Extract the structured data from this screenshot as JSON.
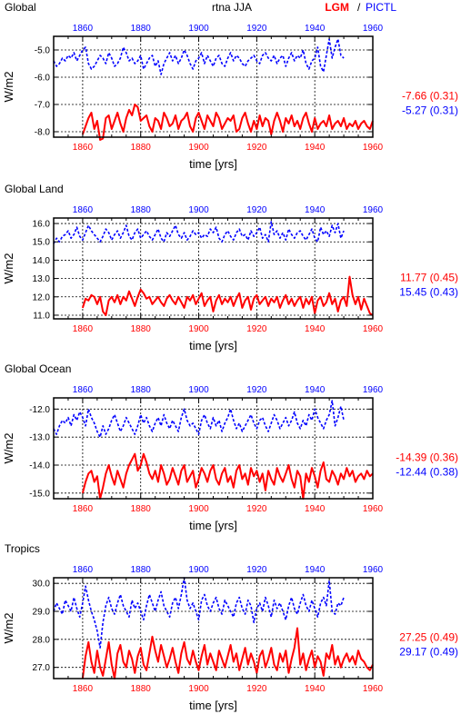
{
  "header": {
    "variable": "rtna JJA",
    "legend_red": "LGM",
    "legend_sep": "/",
    "legend_blue": "PICTL"
  },
  "colors": {
    "lgm": "#ff0000",
    "pictl": "#0000ff",
    "axis": "#000000",
    "grid": "#000000"
  },
  "chart_data": [
    {
      "type": "line",
      "title": "Global",
      "xlabel": "time [yrs]",
      "ylabel": "W/m2",
      "xlim": [
        1850,
        1960
      ],
      "ylim": [
        -8.2,
        -4.5
      ],
      "yticks": [
        "-5.0",
        "-6.0",
        "-7.0",
        "-8.0"
      ],
      "ytick_values": [
        -5.0,
        -6.0,
        -7.0,
        -8.0
      ],
      "xticks_top": [
        "1860",
        "1880",
        "1900",
        "1920",
        "1940",
        "1960"
      ],
      "xticks_bottom": [
        "1860",
        "1880",
        "1900",
        "1920",
        "1940",
        "1960"
      ],
      "grid": true,
      "series": [
        {
          "name": "LGM",
          "stat": "-7.66 (0.31)",
          "x_start": 1860,
          "values": [
            -8.1,
            -7.8,
            -7.5,
            -7.3,
            -7.9,
            -7.6,
            -8.3,
            -8.25,
            -7.5,
            -7.4,
            -7.9,
            -7.6,
            -7.3,
            -7.7,
            -8.0,
            -7.5,
            -7.2,
            -7.4,
            -7.0,
            -7.1,
            -7.6,
            -7.5,
            -7.4,
            -7.8,
            -8.0,
            -7.5,
            -7.6,
            -7.9,
            -7.3,
            -7.5,
            -7.8,
            -7.7,
            -7.4,
            -7.9,
            -7.6,
            -7.5,
            -7.3,
            -7.8,
            -8.0,
            -7.5,
            -7.3,
            -7.6,
            -7.9,
            -7.4,
            -7.6,
            -7.8,
            -7.3,
            -7.5,
            -7.9,
            -7.7,
            -7.5,
            -7.6,
            -7.4,
            -8.0,
            -7.9,
            -7.5,
            -7.3,
            -7.7,
            -8.0,
            -7.6,
            -7.9,
            -7.4,
            -7.8,
            -7.5,
            -7.6,
            -8.1,
            -7.6,
            -7.3,
            -7.6,
            -8.0,
            -7.5,
            -7.7,
            -7.4,
            -7.8,
            -7.6,
            -7.9,
            -7.5,
            -7.3,
            -7.7,
            -8.0,
            -7.5,
            -7.9,
            -7.7,
            -7.6,
            -7.8,
            -7.4,
            -7.9,
            -7.7,
            -7.6,
            -7.8,
            -7.5,
            -7.9,
            -7.7,
            -7.8,
            -7.6,
            -7.9,
            -7.7,
            -7.6,
            -7.8,
            -7.9,
            -7.6
          ]
        },
        {
          "name": "PICTL",
          "stat": "-5.27 (0.31)",
          "x_start": 1850,
          "values": [
            -5.4,
            -5.6,
            -5.5,
            -5.3,
            -5.4,
            -5.2,
            -5.3,
            -5.1,
            -5.4,
            -5.2,
            -5.0,
            -4.9,
            -5.5,
            -5.7,
            -5.6,
            -5.4,
            -5.2,
            -5.3,
            -5.5,
            -5.1,
            -5.3,
            -5.6,
            -5.5,
            -5.3,
            -4.9,
            -5.1,
            -5.4,
            -5.3,
            -5.5,
            -5.4,
            -5.2,
            -5.7,
            -5.5,
            -5.3,
            -5.2,
            -5.6,
            -5.4,
            -5.9,
            -5.5,
            -5.3,
            -5.1,
            -5.4,
            -5.2,
            -5.5,
            -5.3,
            -5.0,
            -5.2,
            -5.5,
            -5.7,
            -5.4,
            -5.3,
            -5.1,
            -5.5,
            -5.2,
            -5.4,
            -5.6,
            -5.3,
            -5.2,
            -5.5,
            -5.6,
            -5.3,
            -5.1,
            -5.4,
            -5.2,
            -5.3,
            -5.5,
            -5.6,
            -5.4,
            -5.3,
            -5.2,
            -5.4,
            -5.5,
            -5.2,
            -5.1,
            -5.3,
            -5.4,
            -5.2,
            -5.5,
            -5.3,
            -5.2,
            -5.6,
            -5.3,
            -5.1,
            -5.4,
            -5.2,
            -5.3,
            -5.0,
            -5.5,
            -5.7,
            -5.4,
            -5.3,
            -4.9,
            -5.6,
            -5.8,
            -5.2,
            -4.6,
            -5.3,
            -4.9,
            -4.6,
            -5.2,
            -5.3
          ]
        }
      ]
    },
    {
      "type": "line",
      "title": "Global Land",
      "xlabel": "time [yrs]",
      "ylabel": "W/m2",
      "xlim": [
        1850,
        1960
      ],
      "ylim": [
        10.8,
        16.3
      ],
      "yticks": [
        "16.0",
        "15.0",
        "14.0",
        "13.0",
        "12.0",
        "11.0"
      ],
      "ytick_values": [
        16.0,
        15.0,
        14.0,
        13.0,
        12.0,
        11.0
      ],
      "xticks_top": [
        "1860",
        "1880",
        "1900",
        "1920",
        "1940",
        "1960"
      ],
      "xticks_bottom": [
        "1860",
        "1880",
        "1900",
        "1920",
        "1940",
        "1960"
      ],
      "grid": true,
      "series": [
        {
          "name": "LGM",
          "stat": "11.77 (0.45)",
          "x_start": 1860,
          "values": [
            11.4,
            11.9,
            11.8,
            12.1,
            12.0,
            11.6,
            12.0,
            11.2,
            11.0,
            11.8,
            12.0,
            11.7,
            12.1,
            11.6,
            12.0,
            11.8,
            12.3,
            11.9,
            11.5,
            12.0,
            12.4,
            12.2,
            11.9,
            12.0,
            11.6,
            11.8,
            12.0,
            11.7,
            11.5,
            11.9,
            12.1,
            11.8,
            11.6,
            12.0,
            11.7,
            11.4,
            12.0,
            11.8,
            12.1,
            11.6,
            11.9,
            12.2,
            11.5,
            11.8,
            12.0,
            11.2,
            11.8,
            12.1,
            11.6,
            11.9,
            11.7,
            12.0,
            11.5,
            11.9,
            12.2,
            11.4,
            11.8,
            12.0,
            11.3,
            11.9,
            12.1,
            11.6,
            11.8,
            12.0,
            11.5,
            11.9,
            11.7,
            12.0,
            11.4,
            11.8,
            12.1,
            11.6,
            11.9,
            11.5,
            11.8,
            12.0,
            11.4,
            11.9,
            11.6,
            12.0,
            11.1,
            11.8,
            12.0,
            11.5,
            11.7,
            12.2,
            11.6,
            11.9,
            11.2,
            11.8,
            12.0,
            11.5,
            13.1,
            12.1,
            11.6,
            12.0,
            11.3,
            11.9,
            11.5,
            11.1,
            11.0
          ]
        },
        {
          "name": "PICTL",
          "stat": "15.45 (0.43)",
          "x_start": 1850,
          "values": [
            14.9,
            15.2,
            15.0,
            15.3,
            15.4,
            15.6,
            15.2,
            15.4,
            15.8,
            15.3,
            15.1,
            15.5,
            15.9,
            15.6,
            15.4,
            15.2,
            15.0,
            15.3,
            15.7,
            15.5,
            15.1,
            15.4,
            15.6,
            15.2,
            15.5,
            15.9,
            15.3,
            15.1,
            15.5,
            15.7,
            15.2,
            15.4,
            15.6,
            15.3,
            15.1,
            15.4,
            15.7,
            15.2,
            15.0,
            15.5,
            15.3,
            15.6,
            15.9,
            15.4,
            15.2,
            15.5,
            15.1,
            15.3,
            15.6,
            15.4,
            15.5,
            15.2,
            15.4,
            15.3,
            15.7,
            15.5,
            15.8,
            15.2,
            15.0,
            15.4,
            15.6,
            15.3,
            15.1,
            15.5,
            15.7,
            15.3,
            15.4,
            15.1,
            15.6,
            15.3,
            15.5,
            15.8,
            15.2,
            15.4,
            15.0,
            16.1,
            15.4,
            15.6,
            15.2,
            15.5,
            15.1,
            15.7,
            15.4,
            15.2,
            15.5,
            15.6,
            15.3,
            15.1,
            15.4,
            15.7,
            15.2,
            15.0,
            15.8,
            15.4,
            15.6,
            15.3,
            15.9,
            15.5,
            16.0,
            15.2,
            15.6
          ]
        }
      ]
    },
    {
      "type": "line",
      "title": "Global Ocean",
      "xlabel": "time [yrs]",
      "ylabel": "W/m2",
      "xlim": [
        1850,
        1960
      ],
      "ylim": [
        -15.2,
        -11.6
      ],
      "yticks": [
        "-12.0",
        "-13.0",
        "-14.0",
        "-15.0"
      ],
      "ytick_values": [
        -12.0,
        -13.0,
        -14.0,
        -15.0
      ],
      "xticks_top": [
        "1860",
        "1880",
        "1900",
        "1920",
        "1940",
        "1960"
      ],
      "xticks_bottom": [
        "1860",
        "1880",
        "1900",
        "1920",
        "1940",
        "1960"
      ],
      "grid": true,
      "series": [
        {
          "name": "LGM",
          "stat": "-14.39 (0.36)",
          "x_start": 1860,
          "values": [
            -15.0,
            -14.6,
            -14.3,
            -14.2,
            -14.6,
            -14.4,
            -15.2,
            -14.8,
            -14.3,
            -14.0,
            -14.4,
            -14.7,
            -14.2,
            -14.5,
            -14.8,
            -14.3,
            -14.0,
            -13.8,
            -13.6,
            -14.2,
            -14.0,
            -13.6,
            -13.9,
            -14.3,
            -14.5,
            -14.2,
            -14.6,
            -14.0,
            -14.3,
            -14.7,
            -14.5,
            -14.1,
            -14.4,
            -14.7,
            -14.2,
            -14.0,
            -14.6,
            -14.4,
            -14.2,
            -14.8,
            -14.5,
            -14.1,
            -14.3,
            -14.6,
            -14.2,
            -14.0,
            -14.5,
            -14.7,
            -14.3,
            -14.1,
            -14.6,
            -14.4,
            -14.8,
            -14.2,
            -14.0,
            -14.5,
            -14.3,
            -14.7,
            -14.1,
            -14.4,
            -14.2,
            -14.6,
            -14.3,
            -14.9,
            -14.2,
            -14.5,
            -14.7,
            -14.1,
            -14.4,
            -14.6,
            -14.3,
            -14.0,
            -14.5,
            -14.8,
            -14.2,
            -14.4,
            -15.2,
            -14.3,
            -14.6,
            -14.1,
            -14.4,
            -14.8,
            -14.2,
            -13.9,
            -14.5,
            -14.6,
            -14.2,
            -14.4,
            -14.7,
            -14.3,
            -14.5,
            -14.1,
            -14.4,
            -14.2,
            -14.6,
            -14.4,
            -14.3,
            -14.5,
            -14.2,
            -14.4,
            -14.3
          ]
        },
        {
          "name": "PICTL",
          "stat": "-12.44 (0.38)",
          "x_start": 1850,
          "values": [
            -12.7,
            -12.9,
            -12.6,
            -12.4,
            -12.5,
            -12.3,
            -12.6,
            -12.2,
            -12.4,
            -12.1,
            -12.3,
            -12.6,
            -12.0,
            -12.3,
            -12.5,
            -12.8,
            -13.0,
            -12.6,
            -12.9,
            -12.7,
            -12.4,
            -12.2,
            -12.5,
            -12.8,
            -12.6,
            -12.3,
            -12.5,
            -12.7,
            -12.9,
            -12.6,
            -12.2,
            -12.5,
            -12.3,
            -12.6,
            -12.8,
            -12.5,
            -12.3,
            -12.6,
            -12.2,
            -12.5,
            -12.7,
            -12.4,
            -12.6,
            -12.8,
            -12.3,
            -12.0,
            -12.4,
            -12.6,
            -12.5,
            -12.7,
            -12.9,
            -12.4,
            -12.2,
            -12.5,
            -12.7,
            -12.3,
            -12.6,
            -12.4,
            -12.8,
            -12.5,
            -12.3,
            -12.0,
            -12.4,
            -12.7,
            -12.5,
            -12.8,
            -12.6,
            -12.4,
            -12.2,
            -12.5,
            -12.7,
            -12.4,
            -12.3,
            -12.6,
            -12.8,
            -12.5,
            -12.2,
            -12.4,
            -12.7,
            -12.5,
            -12.3,
            -12.6,
            -12.4,
            -12.1,
            -12.5,
            -12.7,
            -12.4,
            -12.6,
            -12.2,
            -12.4,
            -12.0,
            -12.3,
            -12.5,
            -12.7,
            -12.4,
            -12.2,
            -11.7,
            -12.6,
            -12.3,
            -11.9,
            -12.4
          ]
        }
      ]
    },
    {
      "type": "line",
      "title": "Tropics",
      "xlabel": "time [yrs]",
      "ylabel": "W/m2",
      "xlim": [
        1850,
        1960
      ],
      "ylim": [
        26.6,
        30.2
      ],
      "yticks": [
        "30.0",
        "29.0",
        "28.0",
        "27.0"
      ],
      "ytick_values": [
        30.0,
        29.0,
        28.0,
        27.0
      ],
      "xticks_top": [
        "1860",
        "1880",
        "1900",
        "1920",
        "1940",
        "1960"
      ],
      "xticks_bottom": [
        "1860",
        "1880",
        "1900",
        "1920",
        "1940",
        "1960"
      ],
      "grid": true,
      "series": [
        {
          "name": "LGM",
          "stat": "27.25 (0.49)",
          "x_start": 1860,
          "values": [
            26.6,
            27.4,
            27.9,
            27.2,
            26.8,
            27.6,
            27.0,
            26.7,
            27.3,
            27.9,
            27.1,
            26.6,
            27.5,
            27.8,
            27.2,
            27.0,
            27.6,
            27.3,
            26.8,
            27.4,
            27.7,
            27.1,
            26.9,
            27.5,
            28.1,
            27.6,
            27.2,
            27.8,
            27.4,
            27.0,
            27.3,
            27.7,
            27.2,
            26.8,
            27.5,
            27.9,
            27.3,
            27.1,
            27.6,
            27.2,
            26.9,
            27.4,
            27.8,
            27.1,
            27.5,
            27.2,
            26.9,
            27.6,
            27.3,
            27.0,
            27.4,
            27.8,
            27.2,
            27.5,
            26.9,
            27.3,
            27.7,
            27.1,
            27.5,
            27.2,
            26.8,
            27.4,
            27.6,
            27.0,
            27.3,
            27.7,
            27.1,
            26.9,
            27.5,
            27.2,
            27.6,
            26.8,
            27.3,
            27.7,
            28.4,
            27.1,
            27.5,
            26.9,
            27.3,
            27.6,
            27.0,
            27.4,
            27.2,
            26.7,
            27.5,
            27.3,
            27.8,
            27.1,
            27.4,
            27.0,
            27.3,
            27.5,
            27.2,
            27.4,
            27.1,
            27.6,
            27.3,
            27.2,
            27.0,
            26.9,
            27.1
          ]
        },
        {
          "name": "PICTL",
          "stat": "29.17 (0.49)",
          "x_start": 1850,
          "values": [
            29.0,
            29.3,
            29.1,
            28.9,
            29.4,
            29.2,
            29.0,
            29.5,
            29.1,
            28.8,
            29.3,
            29.9,
            29.4,
            29.0,
            28.7,
            28.3,
            27.7,
            28.6,
            29.2,
            29.5,
            29.1,
            28.9,
            29.3,
            29.6,
            29.2,
            29.0,
            28.8,
            29.4,
            29.1,
            29.3,
            29.0,
            28.7,
            29.2,
            29.6,
            29.3,
            29.0,
            29.4,
            29.7,
            29.2,
            29.0,
            28.8,
            29.3,
            29.5,
            29.1,
            29.6,
            30.2,
            29.4,
            29.1,
            29.3,
            29.0,
            28.7,
            29.4,
            29.6,
            29.2,
            29.0,
            29.3,
            29.5,
            29.1,
            28.9,
            29.4,
            29.2,
            29.0,
            28.8,
            29.3,
            29.5,
            29.1,
            28.9,
            29.4,
            29.2,
            28.6,
            29.1,
            29.3,
            29.0,
            29.5,
            29.2,
            28.8,
            29.4,
            29.1,
            29.3,
            29.0,
            28.7,
            29.2,
            29.5,
            29.1,
            28.9,
            29.3,
            29.6,
            29.2,
            29.0,
            29.4,
            29.1,
            28.8,
            29.3,
            29.5,
            29.2,
            30.1,
            29.0,
            28.9,
            29.3,
            29.2,
            29.5
          ]
        }
      ]
    }
  ]
}
